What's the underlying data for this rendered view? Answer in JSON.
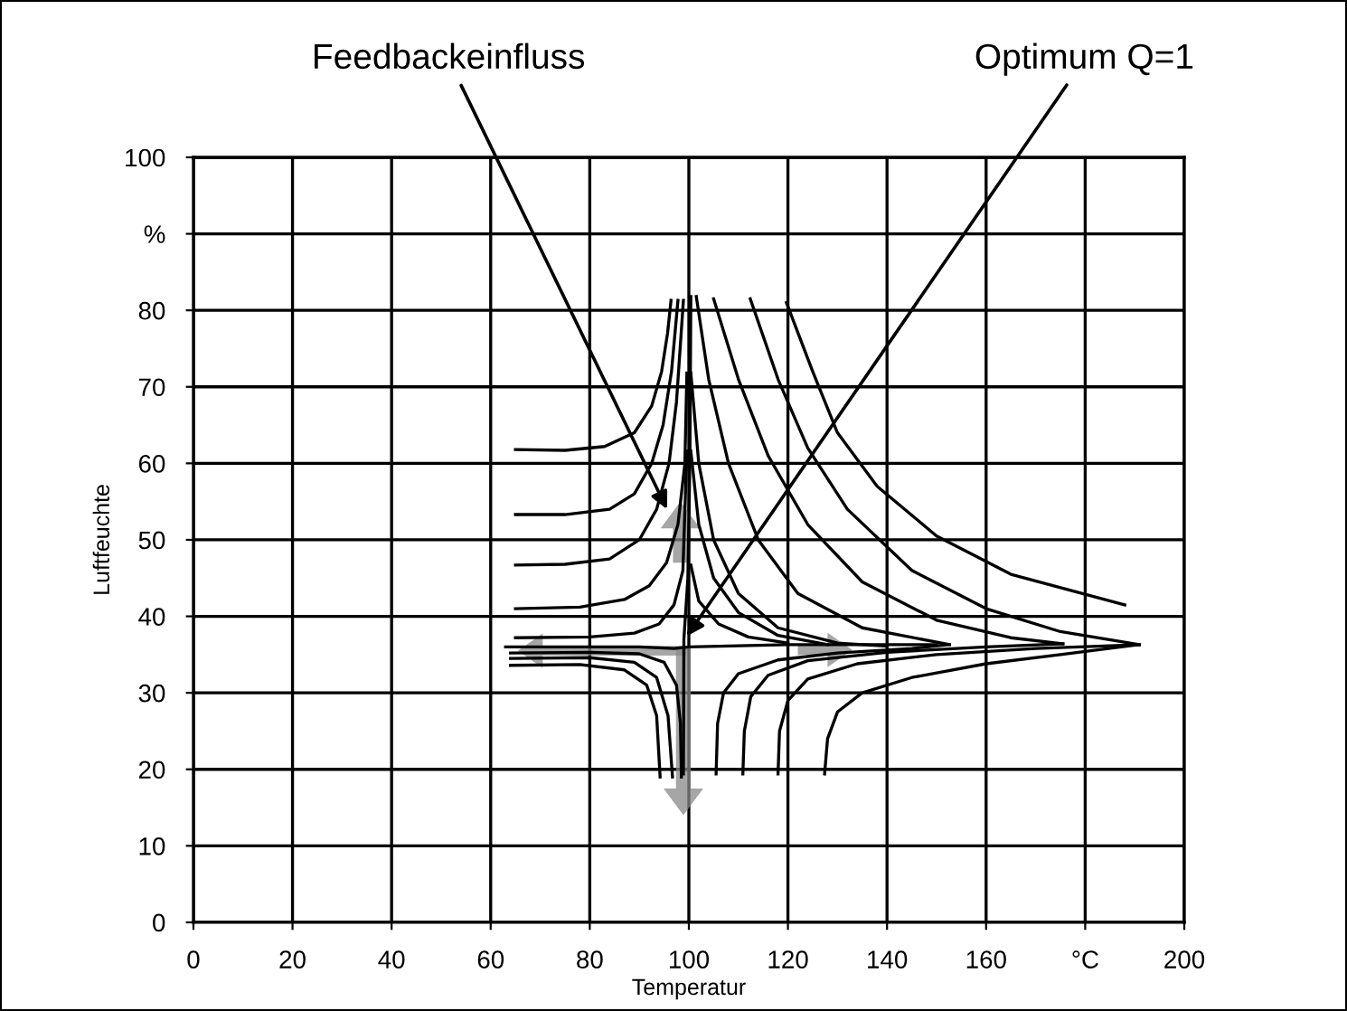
{
  "chart_data": {
    "type": "line",
    "xlabel": "Temperatur",
    "ylabel": "Luftfeuchte",
    "xlim": [
      0,
      200
    ],
    "ylim": [
      0,
      100
    ],
    "xticks": [
      0,
      20,
      40,
      60,
      80,
      100,
      120,
      140,
      160,
      {
        "value": 180,
        "label": "°C"
      },
      200
    ],
    "yticks": [
      0,
      10,
      20,
      30,
      40,
      50,
      60,
      70,
      80,
      {
        "value": 90,
        "label": "%"
      },
      100
    ],
    "grid": true,
    "legend": false,
    "marker": "none",
    "line_style": "solid",
    "annotations": [
      {
        "text": "Feedbackeinfluss",
        "x": 95.6,
        "y": 54
      },
      {
        "text": "Optimum Q=1",
        "x": 99.6,
        "y": 37.4
      }
    ],
    "series": [
      {
        "color": "#000000",
        "x": [
          65,
          75,
          83,
          89,
          92.5,
          94.5,
          95.7,
          96.4
        ],
        "values": [
          61.8,
          61.7,
          62.2,
          64,
          67.5,
          72,
          77,
          81.3
        ]
      },
      {
        "color": "#000000",
        "x": [
          65,
          75,
          84,
          89,
          92.5,
          94.8,
          96.5,
          97.8
        ],
        "values": [
          53.3,
          53.3,
          54,
          56,
          60,
          65,
          72,
          81.3
        ]
      },
      {
        "color": "#000000",
        "x": [
          65,
          75,
          84,
          90,
          93.5,
          96,
          97.5,
          98.9
        ],
        "values": [
          46.7,
          46.8,
          47.5,
          50,
          54,
          60,
          68,
          81.3
        ]
      },
      {
        "color": "#000000",
        "x": [
          65,
          78,
          87,
          92,
          95.5,
          97.8,
          99.2,
          99.6
        ],
        "values": [
          41,
          41.2,
          42.2,
          44,
          47,
          52,
          60,
          71.8
        ]
      },
      {
        "color": "#000000",
        "x": [
          65,
          80,
          89,
          94,
          97,
          98.8,
          99.6
        ],
        "values": [
          37.2,
          37.3,
          37.8,
          39,
          41.5,
          46,
          61.6
        ]
      },
      {
        "color": "#000000",
        "x": [
          64,
          80,
          90,
          95,
          97.5,
          98.3,
          98.5
        ],
        "values": [
          35.2,
          35.3,
          35.1,
          34,
          31,
          26,
          19
        ]
      },
      {
        "color": "#000000",
        "x": [
          64,
          78,
          87,
          91.5,
          93.5,
          94.2
        ],
        "values": [
          33.6,
          33.7,
          33,
          31,
          27,
          19
        ]
      },
      {
        "color": "#000000",
        "x": [
          64,
          80,
          89,
          93.5,
          95.8,
          96.7
        ],
        "values": [
          34.5,
          34.6,
          34,
          32,
          27,
          19
        ]
      },
      {
        "color": "#000000",
        "x": [
          100.4,
          100.2,
          99.8,
          99,
          98.9
        ],
        "values": [
          81.8,
          60,
          45,
          37,
          19.4
        ]
      },
      {
        "color": "#000000",
        "x": [
          63,
          90,
          97,
          100,
          120,
          150
        ],
        "values": [
          36,
          36,
          35.8,
          36,
          36.3,
          36.3
        ]
      },
      {
        "color": "#000000",
        "x": [
          105.5,
          105.8,
          107,
          110,
          118,
          130,
          145,
          152.6
        ],
        "values": [
          19.4,
          26,
          30,
          32.5,
          34.3,
          35.2,
          35.8,
          36.3
        ]
      },
      {
        "color": "#000000",
        "x": [
          110.9,
          111.2,
          112.5,
          116,
          124,
          140,
          160,
          175.5
        ],
        "values": [
          19.4,
          25,
          29.5,
          32.3,
          34.2,
          35.3,
          36,
          36.4
        ]
      },
      {
        "color": "#000000",
        "x": [
          118,
          118.3,
          120,
          124,
          134,
          150,
          170,
          190.9
        ],
        "values": [
          19.4,
          25,
          29,
          31.8,
          33.8,
          35,
          35.8,
          36.3
        ]
      },
      {
        "color": "#000000",
        "x": [
          127.4,
          128,
          130,
          135,
          145,
          160,
          175,
          190.9
        ],
        "values": [
          19.4,
          24,
          27.5,
          30,
          32,
          33.8,
          35,
          36.3
        ]
      },
      {
        "color": "#000000",
        "x": [
          119.7,
          125,
          130,
          138,
          150,
          165,
          188
        ],
        "values": [
          81,
          72,
          64,
          57,
          50.5,
          45.5,
          41.5
        ]
      },
      {
        "color": "#000000",
        "x": [
          112.4,
          118,
          124,
          132,
          145,
          160,
          175,
          190.9
        ],
        "values": [
          81.5,
          71,
          62,
          54,
          46,
          41,
          38,
          36.3
        ]
      },
      {
        "color": "#000000",
        "x": [
          105,
          110,
          116,
          124,
          135,
          150,
          165,
          175.5
        ],
        "values": [
          81.5,
          71,
          61,
          52,
          44.5,
          39.5,
          37.2,
          36.4
        ]
      },
      {
        "color": "#000000",
        "x": [
          101.5,
          104,
          108,
          114,
          122,
          135,
          152.6
        ],
        "values": [
          81.8,
          71,
          60,
          50,
          43,
          38.5,
          36.3
        ]
      },
      {
        "color": "#000000",
        "x": [
          100.4,
          102,
          105,
          110,
          118,
          130,
          140
        ],
        "values": [
          71.8,
          60,
          50,
          43,
          38.5,
          36.5,
          36.1
        ]
      },
      {
        "color": "#000000",
        "x": [
          100.4,
          102,
          105,
          110,
          118,
          128
        ],
        "values": [
          61.6,
          52,
          45,
          40.5,
          37.5,
          36.3
        ]
      },
      {
        "color": "#000000",
        "x": [
          100.4,
          102,
          106,
          112,
          120
        ],
        "values": [
          46.7,
          42,
          39,
          37.3,
          36.5
        ]
      }
    ]
  }
}
